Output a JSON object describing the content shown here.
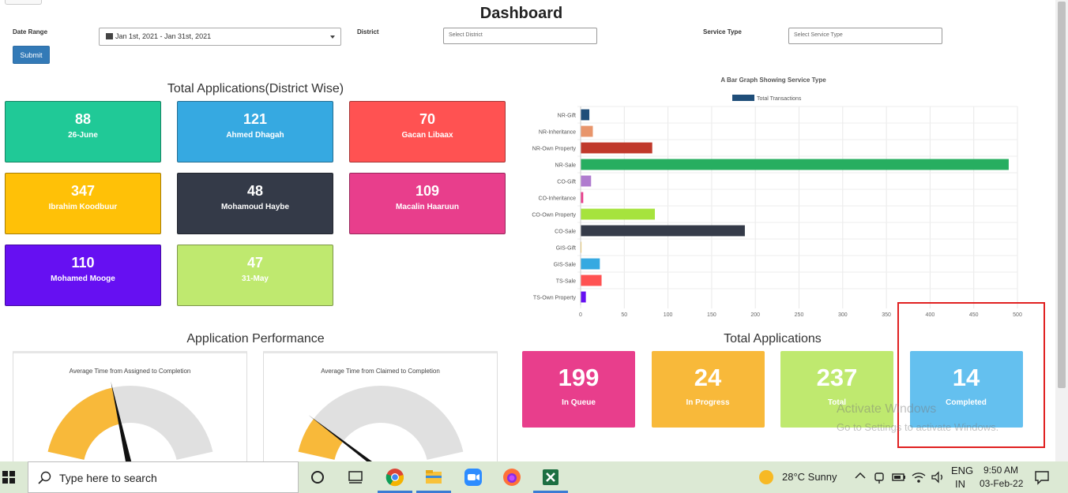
{
  "page": {
    "title": "Dashboard",
    "filters": {
      "date_range_label": "Date Range",
      "date_range_value": "Jan 1st, 2021 - Jan 31st, 2021",
      "district_label": "District",
      "district_placeholder": "Select District",
      "service_type_label": "Service Type",
      "service_type_placeholder": "Select Service Type",
      "submit_label": "Submit"
    },
    "district_section": {
      "title": "Total Applications(District Wise)",
      "cards": [
        {
          "value": "88",
          "label": "26-June",
          "color": "#20c997"
        },
        {
          "value": "121",
          "label": "Ahmed Dhagah",
          "color": "#36a9e1"
        },
        {
          "value": "70",
          "label": "Gacan Libaax",
          "color": "#ff5252"
        },
        {
          "value": "347",
          "label": "Ibrahim Koodbuur",
          "color": "#ffc107"
        },
        {
          "value": "48",
          "label": "Mohamoud Haybe",
          "color": "#343a48"
        },
        {
          "value": "109",
          "label": "Macalin Haaruun",
          "color": "#e83e8c"
        },
        {
          "value": "110",
          "label": "Mohamed Mooge",
          "color": "#6610f2"
        },
        {
          "value": "47",
          "label": "31-May",
          "color": "#bfe96f"
        }
      ]
    },
    "performance_section": {
      "title": "Application Performance",
      "gauges": [
        {
          "title": "Average Time from Assigned to Completion",
          "fraction": 0.42
        },
        {
          "title": "Average Time from Claimed to Completion",
          "fraction": 0.16
        }
      ]
    },
    "totals_section": {
      "title": "Total Applications",
      "cards": [
        {
          "value": "199",
          "label": "In Queue",
          "color": "#e83e8c"
        },
        {
          "value": "24",
          "label": "In Progress",
          "color": "#f8b93a"
        },
        {
          "value": "237",
          "label": "Total",
          "color": "#bfe96f"
        },
        {
          "value": "14",
          "label": "Completed",
          "color": "#64c0ef"
        }
      ]
    },
    "watermark": {
      "line1": "Activate Windows",
      "line2": "Go to Settings to activate Windows."
    }
  },
  "chart_data": {
    "type": "bar",
    "orientation": "horizontal",
    "title": "A Bar Graph Showing Service Type",
    "legend": "Total Transactions",
    "legend_color": "#1f4e79",
    "legend_position": "top",
    "categories": [
      "NR-Gift",
      "NR-Inheritance",
      "NR-Own Property",
      "NR-Sale",
      "CO-Gift",
      "CO-Inheritance",
      "CO-Own Property",
      "CO-Sale",
      "GIS-Gift",
      "GIS-Sale",
      "TS-Sale",
      "TS-Own Property"
    ],
    "values": [
      10,
      14,
      82,
      490,
      12,
      3,
      85,
      188,
      1,
      22,
      24,
      6
    ],
    "colors": [
      "#1f4e79",
      "#e8956b",
      "#c0392b",
      "#27ae60",
      "#b07ccf",
      "#e83e8c",
      "#a6e33d",
      "#343a48",
      "#f5c542",
      "#36a9e1",
      "#ff5252",
      "#6610f2"
    ],
    "xticks": [
      "0",
      "50",
      "100",
      "150",
      "200",
      "250",
      "300",
      "350",
      "400",
      "450",
      "500"
    ],
    "xlim": [
      0,
      500
    ],
    "grid": true
  },
  "taskbar": {
    "search_placeholder": "Type here to search",
    "weather": "28°C  Sunny",
    "lang_line1": "ENG",
    "lang_line2": "IN",
    "time": "9:50 AM",
    "date": "03-Feb-22"
  }
}
